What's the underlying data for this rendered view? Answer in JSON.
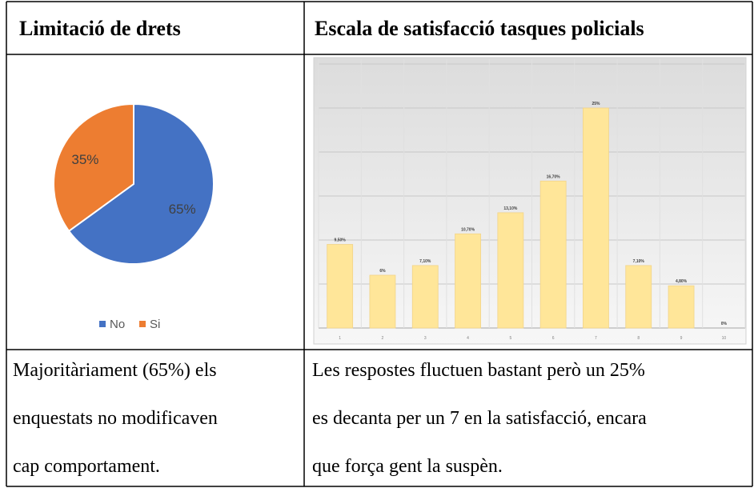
{
  "table": {
    "headers": [
      "Limitació de drets",
      "Escala de satisfacció tasques policials"
    ],
    "notes": [
      [
        "Majoritàriament (65%) els",
        "enquestats no modificaven",
        "cap comportament."
      ],
      [
        "Les respostes fluctuen bastant però un 25%",
        "es decanta per un 7 en la satisfacció, encara",
        "que força gent la suspèn."
      ]
    ]
  },
  "chart_data": [
    {
      "type": "pie",
      "categories": [
        "No",
        "Si"
      ],
      "values": [
        65,
        35
      ],
      "value_labels": [
        "65%",
        "35%"
      ],
      "colors": [
        "#4472c4",
        "#ed7d31"
      ],
      "legend": "bottom"
    },
    {
      "type": "bar",
      "categories": [
        "1",
        "2",
        "3",
        "4",
        "5",
        "6",
        "7",
        "8",
        "9",
        "10"
      ],
      "values": [
        9.5,
        6,
        7.1,
        10.7,
        13.1,
        16.7,
        25,
        7.1,
        4.8,
        0
      ],
      "value_labels": [
        "9,50%",
        "6%",
        "7,10%",
        "10,70%",
        "13,10%",
        "16,70%",
        "25%",
        "7,10%",
        "4,80%",
        "0%"
      ],
      "color": "#ffe699",
      "ylim": [
        0,
        30
      ],
      "yticks": [
        0,
        5,
        10,
        15,
        20,
        25,
        30
      ],
      "grid": true
    }
  ]
}
